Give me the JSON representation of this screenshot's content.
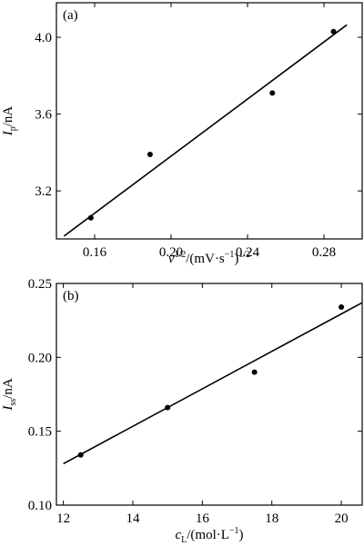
{
  "chart_data": [
    {
      "type": "scatter",
      "panel_label": "(a)",
      "xlabel": {
        "symbol": "v",
        "sup1": "1/2",
        "unit_main": "/(mV·s",
        "sup2": "−1",
        "unit_close": ")",
        "sup3": "1/2"
      },
      "ylabel": {
        "symbol": "I",
        "sub": "p",
        "unit": "/nA"
      },
      "xlim": [
        0.14,
        0.3
      ],
      "ylim": [
        2.95,
        4.18
      ],
      "x_ticks": [
        0.16,
        0.2,
        0.24,
        0.28
      ],
      "x_tick_labels": [
        "0.16",
        "0.20",
        "0.24",
        "0.28"
      ],
      "y_ticks": [
        3.2,
        3.6,
        4.0
      ],
      "y_tick_labels": [
        "3.2",
        "3.6",
        "4.0"
      ],
      "points": [
        {
          "x": 0.158,
          "y": 3.06
        },
        {
          "x": 0.189,
          "y": 3.39
        },
        {
          "x": 0.253,
          "y": 3.71
        },
        {
          "x": 0.285,
          "y": 4.03
        }
      ],
      "fit_line": [
        {
          "x": 0.144,
          "y": 2.965
        },
        {
          "x": 0.292,
          "y": 4.065
        }
      ],
      "grid": false,
      "legend": "none"
    },
    {
      "type": "scatter",
      "panel_label": "(b)",
      "xlabel": {
        "symbol": "c",
        "sub": "L",
        "unit_main": "/(mol·L",
        "sup": "−1",
        "unit_close": ")"
      },
      "ylabel": {
        "symbol": "I",
        "sub": "ss",
        "unit": "/nA"
      },
      "xlim": [
        11.8,
        20.6
      ],
      "ylim": [
        0.1,
        0.25
      ],
      "x_ticks": [
        12,
        14,
        16,
        18,
        20
      ],
      "x_tick_labels": [
        "12",
        "14",
        "16",
        "18",
        "20"
      ],
      "y_ticks": [
        0.1,
        0.15,
        0.2,
        0.25
      ],
      "y_tick_labels": [
        "0.10",
        "0.15",
        "0.20",
        "0.25"
      ],
      "points": [
        {
          "x": 12.5,
          "y": 0.134
        },
        {
          "x": 15.0,
          "y": 0.166
        },
        {
          "x": 17.5,
          "y": 0.19
        },
        {
          "x": 20.0,
          "y": 0.234
        }
      ],
      "fit_line": [
        {
          "x": 12.0,
          "y": 0.128
        },
        {
          "x": 20.6,
          "y": 0.237
        }
      ],
      "grid": false,
      "legend": "none"
    }
  ]
}
